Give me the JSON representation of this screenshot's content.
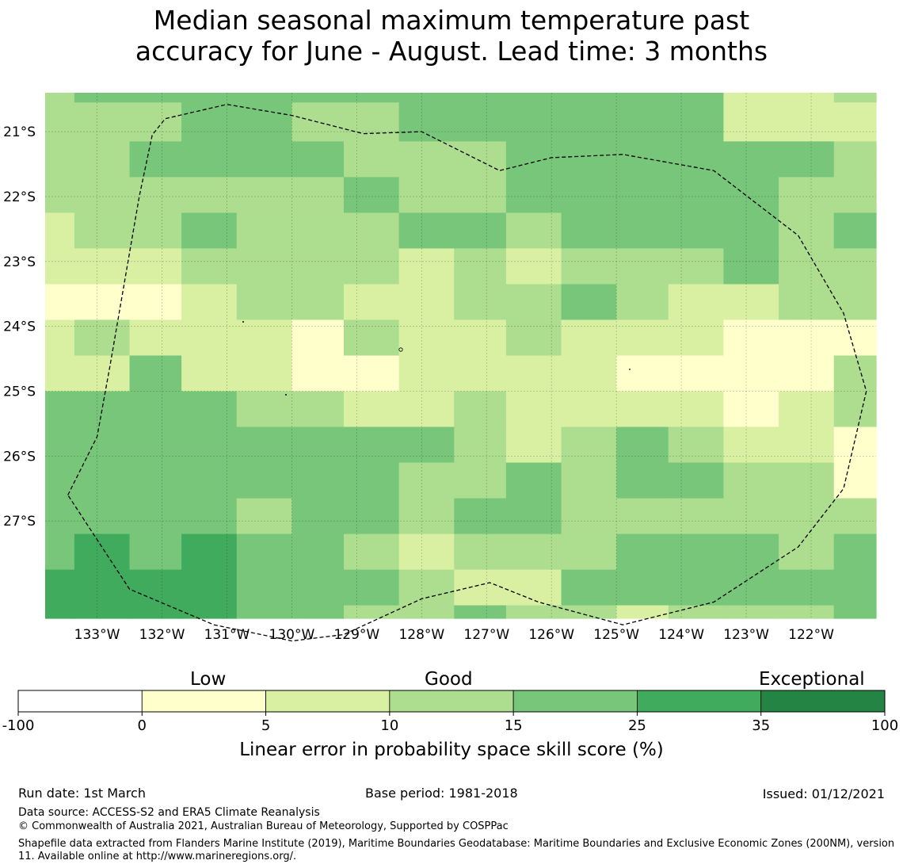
{
  "title": {
    "line1": "Median seasonal maximum temperature past",
    "line2": "accuracy for June - August. Lead time: 3 months"
  },
  "chart_data": {
    "type": "heatmap",
    "title": "Median seasonal maximum temperature past accuracy for June - August. Lead time: 3 months",
    "lon_range": [
      -133.8,
      -121.0
    ],
    "lat_range": [
      -28.5,
      -20.4
    ],
    "x_ticks": [
      {
        "value": -133,
        "label": "133°W"
      },
      {
        "value": -132,
        "label": "132°W"
      },
      {
        "value": -131,
        "label": "131°W"
      },
      {
        "value": -130,
        "label": "130°W"
      },
      {
        "value": -129,
        "label": "129°W"
      },
      {
        "value": -128,
        "label": "128°W"
      },
      {
        "value": -127,
        "label": "127°W"
      },
      {
        "value": -126,
        "label": "126°W"
      },
      {
        "value": -125,
        "label": "125°W"
      },
      {
        "value": -124,
        "label": "124°W"
      },
      {
        "value": -123,
        "label": "123°W"
      },
      {
        "value": -122,
        "label": "122°W"
      }
    ],
    "y_ticks": [
      {
        "value": -21,
        "label": "21°S"
      },
      {
        "value": -22,
        "label": "22°S"
      },
      {
        "value": -23,
        "label": "23°S"
      },
      {
        "value": -24,
        "label": "24°S"
      },
      {
        "value": -25,
        "label": "25°S"
      },
      {
        "value": -26,
        "label": "26°S"
      },
      {
        "value": -27,
        "label": "27°S"
      }
    ],
    "grid": true,
    "cell_lon": [
      -133.8,
      -133.35,
      -132.5,
      -131.7,
      -130.85,
      -130.0,
      -129.2,
      -128.35,
      -127.5,
      -126.7,
      -125.85,
      -125.0,
      -124.2,
      -123.35,
      -122.5,
      -121.65,
      -121.0
    ],
    "cell_lat": [
      -20.4,
      -20.55,
      -21.15,
      -21.7,
      -22.25,
      -22.8,
      -23.35,
      -23.9,
      -24.45,
      -25.0,
      -25.55,
      -26.1,
      -26.65,
      -27.2,
      -27.75,
      -28.3,
      -28.5
    ],
    "grid_categories": [
      [
        3,
        4,
        4,
        4,
        4,
        4,
        4,
        4,
        4,
        4,
        4,
        4,
        4,
        2,
        2,
        3
      ],
      [
        3,
        3,
        3,
        4,
        4,
        3,
        3,
        4,
        4,
        4,
        4,
        4,
        4,
        2,
        2,
        2
      ],
      [
        3,
        3,
        4,
        4,
        4,
        4,
        3,
        3,
        3,
        4,
        4,
        4,
        4,
        4,
        4,
        3
      ],
      [
        3,
        3,
        3,
        3,
        3,
        3,
        4,
        3,
        3,
        4,
        4,
        4,
        4,
        4,
        3,
        3
      ],
      [
        2,
        3,
        3,
        4,
        3,
        3,
        3,
        4,
        4,
        3,
        4,
        4,
        4,
        4,
        3,
        4
      ],
      [
        2,
        2,
        2,
        3,
        3,
        3,
        3,
        2,
        3,
        2,
        3,
        3,
        3,
        4,
        3,
        3
      ],
      [
        1,
        1,
        1,
        2,
        3,
        3,
        2,
        2,
        3,
        3,
        4,
        3,
        2,
        2,
        3,
        3
      ],
      [
        2,
        3,
        2,
        2,
        2,
        1,
        3,
        2,
        2,
        3,
        2,
        2,
        2,
        1,
        1,
        1
      ],
      [
        2,
        2,
        4,
        2,
        2,
        1,
        1,
        2,
        2,
        2,
        2,
        1,
        1,
        1,
        1,
        3
      ],
      [
        4,
        4,
        4,
        4,
        3,
        3,
        2,
        2,
        3,
        2,
        2,
        2,
        2,
        1,
        2,
        3
      ],
      [
        4,
        4,
        4,
        4,
        4,
        4,
        4,
        4,
        3,
        2,
        3,
        4,
        3,
        2,
        2,
        1
      ],
      [
        4,
        4,
        4,
        4,
        4,
        4,
        4,
        3,
        3,
        4,
        3,
        4,
        4,
        3,
        3,
        1
      ],
      [
        4,
        4,
        4,
        4,
        3,
        4,
        4,
        3,
        4,
        4,
        3,
        3,
        3,
        3,
        3,
        3
      ],
      [
        4,
        5,
        4,
        5,
        4,
        4,
        3,
        2,
        3,
        3,
        3,
        4,
        4,
        4,
        3,
        4
      ],
      [
        5,
        5,
        5,
        5,
        4,
        4,
        4,
        3,
        2,
        2,
        4,
        4,
        4,
        4,
        4,
        4
      ],
      [
        5,
        5,
        5,
        5,
        4,
        4,
        3,
        3,
        4,
        3,
        3,
        2,
        3,
        3,
        3,
        4
      ]
    ],
    "boundary_polyline": [
      [
        -133.45,
        -26.6
      ],
      [
        -133.0,
        -25.7
      ],
      [
        -132.8,
        -24.6
      ],
      [
        -132.35,
        -22.0
      ],
      [
        -132.15,
        -21.05
      ],
      [
        -131.95,
        -20.8
      ],
      [
        -131.0,
        -20.58
      ],
      [
        -130.0,
        -20.75
      ],
      [
        -128.9,
        -21.03
      ],
      [
        -128.0,
        -21.0
      ],
      [
        -126.8,
        -21.6
      ],
      [
        -126.0,
        -21.4
      ],
      [
        -124.9,
        -21.35
      ],
      [
        -123.5,
        -21.6
      ],
      [
        -122.2,
        -22.6
      ],
      [
        -121.5,
        -23.8
      ],
      [
        -121.15,
        -25.0
      ],
      [
        -121.5,
        -26.5
      ],
      [
        -122.2,
        -27.4
      ],
      [
        -123.5,
        -28.25
      ],
      [
        -124.9,
        -28.6
      ],
      [
        -126.2,
        -28.25
      ],
      [
        -126.95,
        -27.95
      ],
      [
        -128.0,
        -28.2
      ],
      [
        -129.2,
        -28.75
      ],
      [
        -130.0,
        -28.85
      ],
      [
        -131.2,
        -28.6
      ],
      [
        -132.5,
        -28.05
      ],
      [
        -133.45,
        -26.6
      ]
    ],
    "colorbar": {
      "label": "Linear error in probability space skill score (%)",
      "boundaries": [
        "-100",
        "0",
        "5",
        "10",
        "15",
        "25",
        "35",
        "100"
      ],
      "colors": [
        "#ffffff",
        "#ffffcc",
        "#d9f0a3",
        "#addd8e",
        "#78c679",
        "#41ab5d",
        "#238443"
      ],
      "category_labels": [
        "Low",
        "Good",
        "Exceptional"
      ]
    }
  },
  "footer": {
    "run_date": "Run date: 1st March",
    "base_period": "Base period: 1981-2018",
    "issued": "Issued: 01/12/2021",
    "data_source": "Data source: ACCESS-S2 and ERA5 Climate Reanalysis",
    "copyright": "© Commonwealth of Australia 2021, Australian Bureau of Meteorology, Supported by COSPPac",
    "shapefile_note": "Shapefile data extracted from Flanders Marine Institute (2019), Maritime Boundaries Geodatabase: Maritime Boundaries and Exclusive Economic Zones (200NM), version 11. Available online at http://www.marineregions.org/."
  }
}
